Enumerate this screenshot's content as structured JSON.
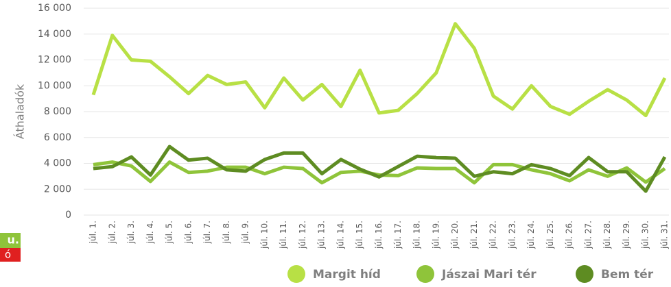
{
  "chart_data": {
    "type": "line",
    "y_label": "Áthaladók",
    "side_labels": [
      "u.",
      "ó"
    ],
    "categories": [
      "júl. 1.",
      "júl. 2.",
      "júl. 3.",
      "júl. 4.",
      "júl. 5.",
      "júl. 6.",
      "júl. 7.",
      "júl. 8.",
      "júl. 9.",
      "júl. 10.",
      "júl. 11.",
      "júl. 12.",
      "júl. 13.",
      "júl. 14.",
      "júl. 15.",
      "júl. 16.",
      "júl. 17.",
      "júl. 18.",
      "júl. 19.",
      "júl. 20.",
      "júl. 21.",
      "júl. 22.",
      "júl. 23.",
      "júl. 24.",
      "júl. 25.",
      "júl. 26.",
      "júl. 27.",
      "júl. 28.",
      "júl. 29.",
      "júl. 30.",
      "júl. 31."
    ],
    "series": [
      {
        "name": "Margit híd",
        "color": "#b8e045",
        "values": [
          9300,
          13900,
          12000,
          11900,
          10700,
          9400,
          10800,
          10100,
          10300,
          8300,
          10600,
          8900,
          10100,
          8400,
          11200,
          7900,
          8100,
          9400,
          11000,
          14800,
          12900,
          9200,
          8200,
          10000,
          8400,
          7800,
          8800,
          9700,
          8900,
          7700,
          10600
        ]
      },
      {
        "name": "Jászai Mari tér",
        "color": "#8fc43a",
        "values": [
          3900,
          4100,
          3800,
          2600,
          4100,
          3300,
          3400,
          3700,
          3700,
          3200,
          3700,
          3600,
          2500,
          3300,
          3400,
          3100,
          3050,
          3650,
          3600,
          3600,
          2500,
          3900,
          3900,
          3500,
          3200,
          2650,
          3500,
          3000,
          3650,
          2550,
          3600
        ]
      },
      {
        "name": "Bem tér",
        "color": "#5e8c22",
        "values": [
          3600,
          3750,
          4500,
          3100,
          5300,
          4250,
          4400,
          3500,
          3400,
          4300,
          4800,
          4800,
          3200,
          4300,
          3550,
          2950,
          3750,
          4550,
          4450,
          4400,
          3000,
          3350,
          3200,
          3900,
          3600,
          3050,
          4450,
          3350,
          3350,
          1850,
          4500
        ]
      }
    ],
    "ylim": [
      0,
      16000
    ],
    "yticks": [
      0,
      {
        "value": 2000,
        "label": "2 000"
      },
      {
        "value": 4000,
        "label": "4 000"
      },
      {
        "value": 6000,
        "label": "6 000"
      },
      {
        "value": 8000,
        "label": "8 000"
      },
      {
        "value": 10000,
        "label": "10 000"
      },
      {
        "value": 12000,
        "label": "12 000"
      },
      {
        "value": 14000,
        "label": "14 000"
      },
      {
        "value": 16000,
        "label": "16 000"
      }
    ],
    "grid": true,
    "legend": "bottom"
  }
}
